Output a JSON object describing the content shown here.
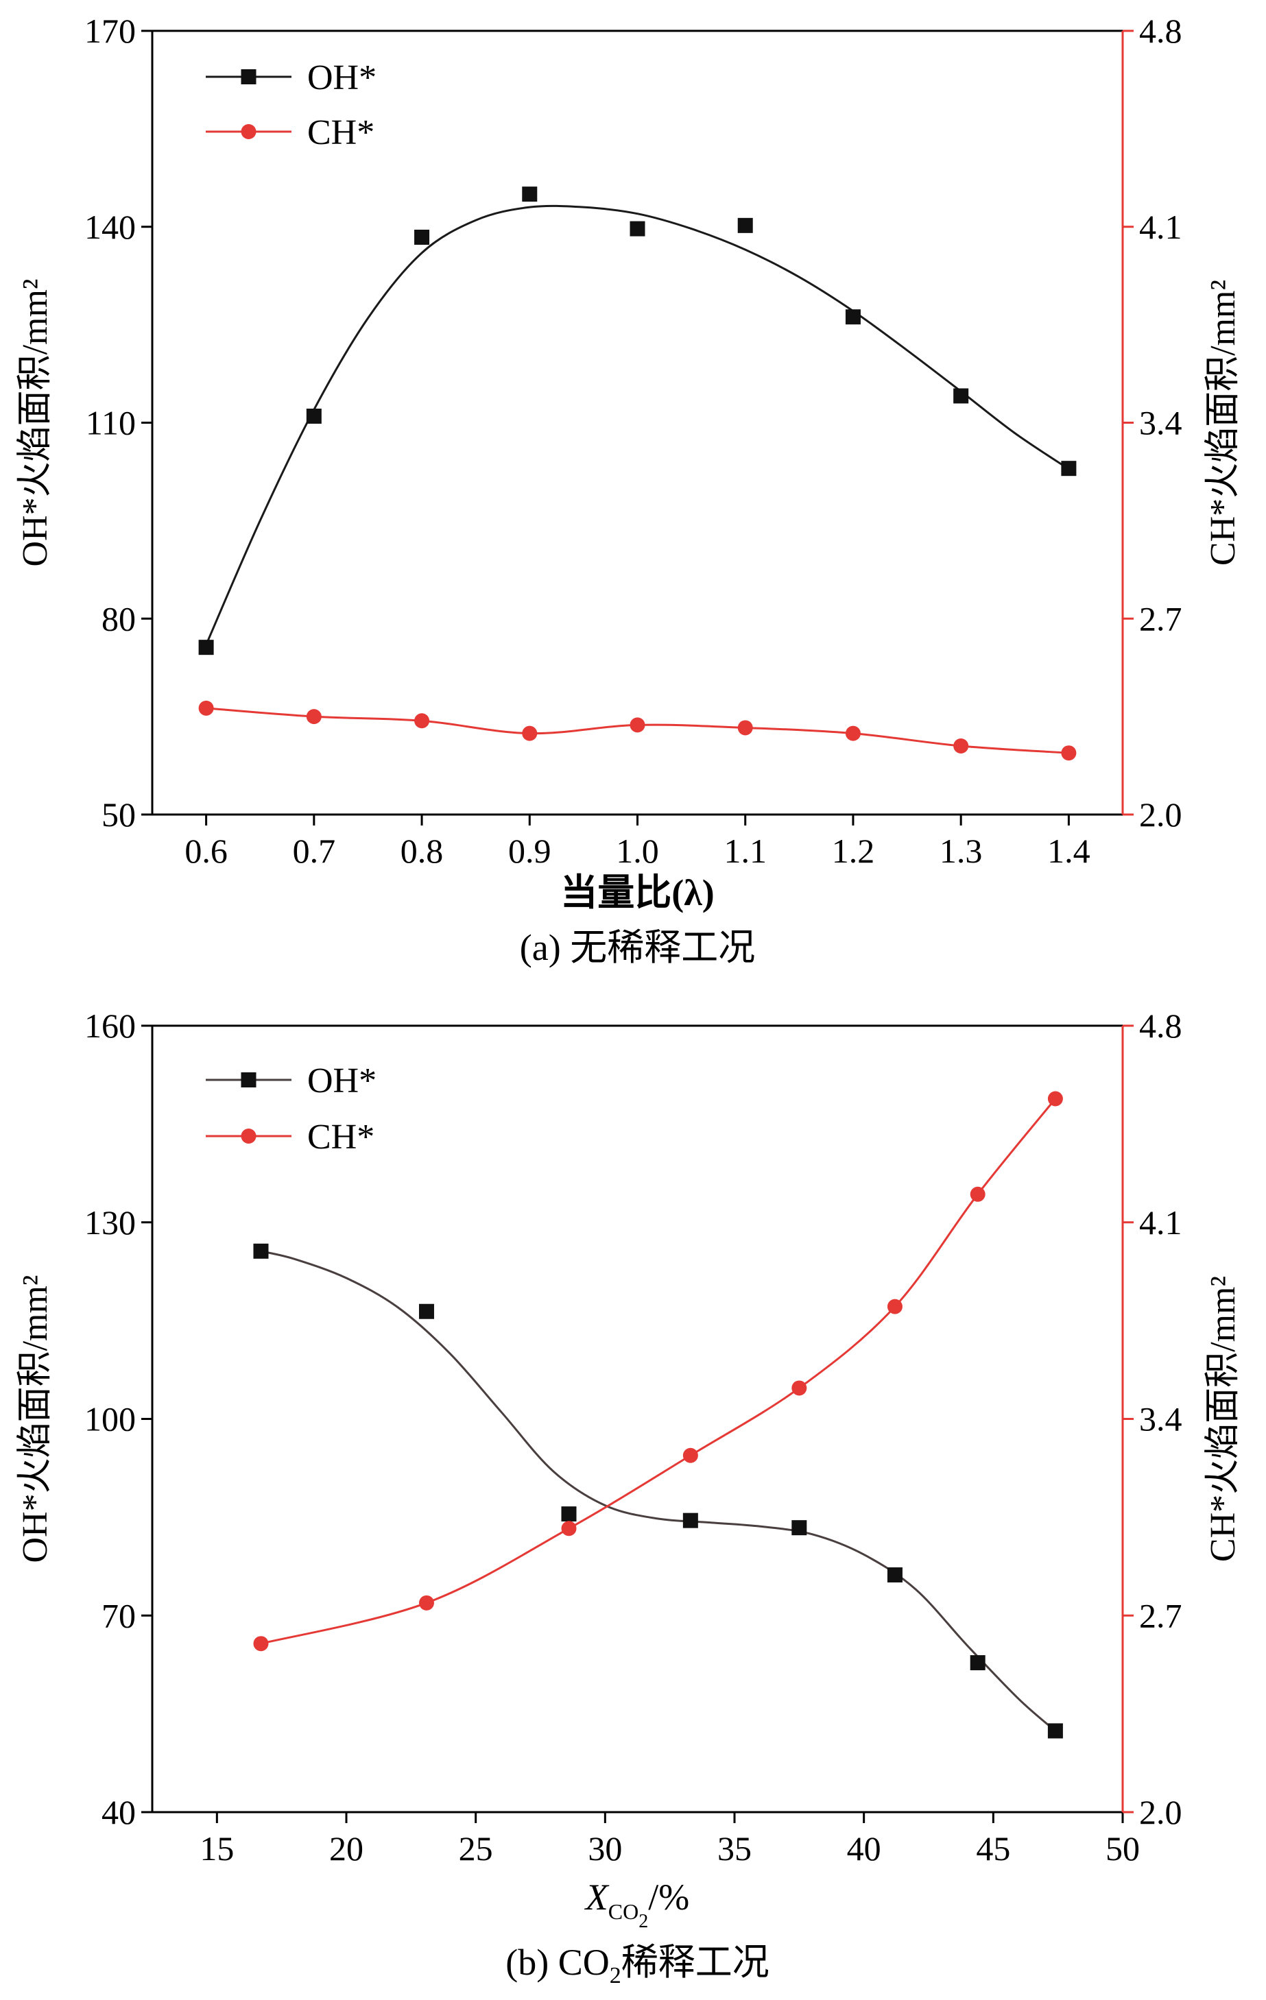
{
  "chart_data": [
    {
      "type": "line",
      "panel_caption": "(a) 无稀释工况",
      "xlabel": "当量比(λ)",
      "ylabel_left": "OH*火焰面积/mm²",
      "ylabel_right": "CH*火焰面积/mm²",
      "xlim": [
        0.55,
        1.45
      ],
      "ylim_left": [
        50,
        170
      ],
      "ylim_right": [
        2.0,
        4.8
      ],
      "xticks": [
        "0.6",
        "0.7",
        "0.8",
        "0.9",
        "1.0",
        "1.1",
        "1.2",
        "1.3",
        "1.4"
      ],
      "yticks_left": [
        "50",
        "80",
        "110",
        "140",
        "170"
      ],
      "yticks_right": [
        "2.0",
        "2.7",
        "3.4",
        "4.1",
        "4.8"
      ],
      "legend_position": "top-left",
      "series": [
        {
          "name": "OH*",
          "axis": "left",
          "marker": "square",
          "color": "#1a1a1a",
          "x": [
            0.6,
            0.7,
            0.8,
            0.9,
            1.0,
            1.1,
            1.2,
            1.3,
            1.4
          ],
          "values": [
            75.6,
            111.0,
            138.4,
            145.0,
            139.7,
            140.2,
            126.2,
            114.1,
            103.0
          ],
          "fit": [
            [
              0.6,
              76
            ],
            [
              0.65,
              95
            ],
            [
              0.7,
              112
            ],
            [
              0.75,
              126
            ],
            [
              0.8,
              136
            ],
            [
              0.85,
              141
            ],
            [
              0.9,
              143
            ],
            [
              0.95,
              143
            ],
            [
              1.0,
              142
            ],
            [
              1.05,
              139.7
            ],
            [
              1.1,
              136.5
            ],
            [
              1.15,
              132.3
            ],
            [
              1.2,
              127.1
            ],
            [
              1.25,
              121.1
            ],
            [
              1.3,
              114.8
            ],
            [
              1.35,
              108.4
            ],
            [
              1.4,
              102.9
            ]
          ]
        },
        {
          "name": "CH*",
          "axis": "right",
          "marker": "circle",
          "color": "#e53935",
          "x": [
            0.6,
            0.7,
            0.8,
            0.9,
            1.0,
            1.1,
            1.2,
            1.3,
            1.4
          ],
          "values": [
            2.38,
            2.35,
            2.335,
            2.29,
            2.32,
            2.31,
            2.29,
            2.245,
            2.22
          ]
        }
      ]
    },
    {
      "type": "line",
      "panel_caption": "(b) CO₂稀释工况",
      "xlabel": "X_CO2/%",
      "xlabel_main": "X",
      "xlabel_sub": "CO",
      "xlabel_subsub": "2",
      "xlabel_unit": "/%",
      "caption_prefix": "(b) CO",
      "caption_sub": "2",
      "caption_suffix": "稀释工况",
      "ylabel_left": "OH*火焰面积/mm²",
      "ylabel_right": "CH*火焰面积/mm²",
      "xlim": [
        12.5,
        50
      ],
      "ylim_left": [
        40,
        160
      ],
      "ylim_right": [
        2.0,
        4.8
      ],
      "xticks": [
        "15",
        "20",
        "25",
        "30",
        "35",
        "40",
        "45",
        "50"
      ],
      "yticks_left": [
        "40",
        "70",
        "100",
        "130",
        "160"
      ],
      "yticks_right": [
        "2.0",
        "2.7",
        "3.4",
        "4.1",
        "4.8"
      ],
      "legend_position": "top-left",
      "series": [
        {
          "name": "OH*",
          "axis": "left",
          "marker": "square",
          "color": "#4a3f3f",
          "x": [
            16.7,
            23.1,
            28.6,
            33.3,
            37.5,
            41.2,
            44.4,
            47.4
          ],
          "values": [
            125.6,
            116.4,
            85.5,
            84.5,
            83.4,
            76.2,
            62.8,
            52.4
          ],
          "fit": [
            [
              16.7,
              125.6
            ],
            [
              18,
              124.4
            ],
            [
              20,
              121.5
            ],
            [
              22,
              117.0
            ],
            [
              24,
              110.0
            ],
            [
              26,
              101.0
            ],
            [
              28,
              92.0
            ],
            [
              30,
              86.8
            ],
            [
              32,
              84.8
            ],
            [
              34,
              84.2
            ],
            [
              36,
              83.6
            ],
            [
              38,
              82.4
            ],
            [
              40,
              79.3
            ],
            [
              42,
              74.0
            ],
            [
              44,
              65.4
            ],
            [
              46,
              57.2
            ],
            [
              47.4,
              52.4
            ]
          ]
        },
        {
          "name": "CH*",
          "axis": "right",
          "marker": "circle",
          "color": "#e53935",
          "x": [
            16.7,
            23.1,
            28.6,
            33.3,
            37.5,
            41.2,
            44.4,
            47.4
          ],
          "values": [
            2.6,
            2.745,
            3.01,
            3.27,
            3.51,
            3.8,
            4.2,
            4.54
          ]
        }
      ]
    }
  ]
}
